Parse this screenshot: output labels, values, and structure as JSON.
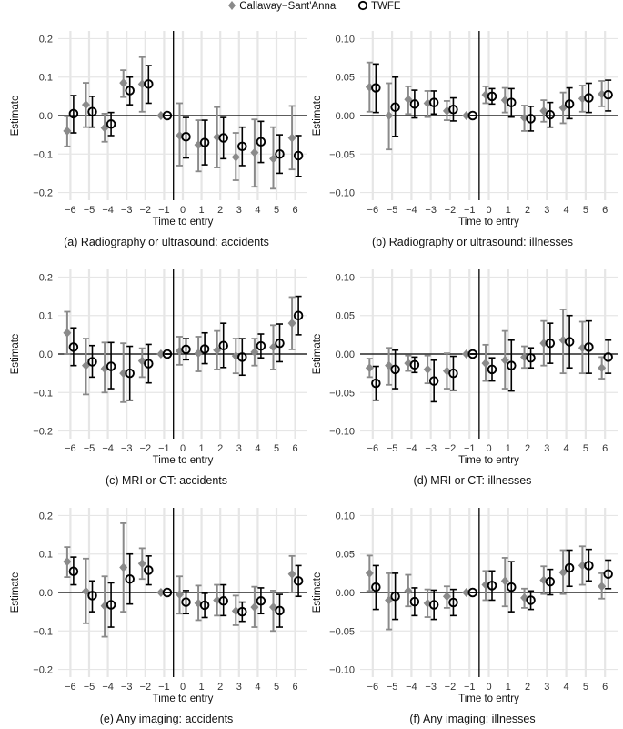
{
  "legend": {
    "callaway": "Callaway−Sant'Anna",
    "twfe": "TWFE"
  },
  "colors": {
    "callaway": "#8a8a8a",
    "twfe": "#000000",
    "grid": "#e6e6e6",
    "zero_line": "#000000"
  },
  "chart_data": [
    {
      "type": "scatter",
      "caption": "(a) Radiography or ultrasound: accidents",
      "xlabel": "Time to entry",
      "ylabel": "Estimate",
      "ylim": [
        -0.22,
        0.22
      ],
      "yticks": [
        -0.2,
        -0.1,
        0.0,
        0.1,
        0.2
      ],
      "ytick_labels": [
        "−0.2",
        "−0.1",
        "0.0",
        "0.1",
        "0.2"
      ],
      "x": [
        -6,
        -5,
        -4,
        -3,
        -2,
        -1,
        0,
        1,
        2,
        3,
        4,
        5,
        6
      ],
      "xtick_labels": [
        "−6",
        "−5",
        "−4",
        "−3",
        "−2",
        "−1",
        "0",
        "1",
        "2",
        "3",
        "4",
        "5",
        "6"
      ],
      "entry_line": -0.5,
      "series": [
        {
          "name": "Callaway−Sant'Anna",
          "estimate": [
            -0.04,
            0.028,
            -0.032,
            0.085,
            0.082,
            0.0,
            -0.052,
            -0.076,
            -0.056,
            -0.108,
            -0.096,
            -0.112,
            -0.058
          ],
          "lower": [
            -0.08,
            -0.03,
            -0.068,
            0.048,
            0.01,
            0.0,
            -0.13,
            -0.145,
            -0.135,
            -0.168,
            -0.185,
            -0.19,
            -0.14
          ],
          "upper": [
            -0.002,
            0.085,
            0.005,
            0.118,
            0.152,
            0.0,
            0.032,
            -0.012,
            0.022,
            -0.045,
            -0.01,
            -0.03,
            0.025
          ]
        },
        {
          "name": "TWFE",
          "estimate": [
            0.005,
            0.01,
            -0.022,
            0.065,
            0.082,
            0.0,
            -0.055,
            -0.07,
            -0.058,
            -0.08,
            -0.068,
            -0.1,
            -0.104
          ],
          "lower": [
            -0.045,
            -0.03,
            -0.052,
            0.028,
            0.032,
            0.0,
            -0.11,
            -0.128,
            -0.112,
            -0.13,
            -0.122,
            -0.15,
            -0.158
          ],
          "upper": [
            0.052,
            0.05,
            0.008,
            0.1,
            0.13,
            0.0,
            -0.005,
            -0.012,
            -0.005,
            -0.03,
            -0.015,
            -0.05,
            -0.052
          ]
        }
      ]
    },
    {
      "type": "scatter",
      "caption": "(b) Radiography or ultrasound: illnesses",
      "xlabel": "Time to entry",
      "ylabel": "Estimate",
      "ylim": [
        -0.11,
        0.11
      ],
      "yticks": [
        -0.1,
        -0.05,
        0.0,
        0.05,
        0.1
      ],
      "ytick_labels": [
        "−0.10",
        "−0.05",
        "0.00",
        "0.05",
        "0.10"
      ],
      "x": [
        -6,
        -5,
        -4,
        -3,
        -2,
        -1,
        0,
        1,
        2,
        3,
        4,
        5,
        6
      ],
      "xtick_labels": [
        "−6",
        "−5",
        "−4",
        "−3",
        "−2",
        "−1",
        "0",
        "1",
        "2",
        "3",
        "4",
        "5",
        "6"
      ],
      "entry_line": -0.5,
      "series": [
        {
          "name": "Callaway−Sant'Anna",
          "estimate": [
            0.037,
            0.0,
            0.021,
            0.016,
            0.006,
            0.0,
            0.027,
            0.02,
            -0.003,
            0.006,
            0.01,
            0.022,
            0.028
          ],
          "lower": [
            0.005,
            -0.044,
            0.002,
            -0.002,
            -0.006,
            0.0,
            0.016,
            0.004,
            -0.02,
            -0.008,
            -0.01,
            0.005,
            0.012
          ],
          "upper": [
            0.069,
            0.042,
            0.038,
            0.032,
            0.019,
            0.0,
            0.038,
            0.036,
            0.013,
            0.02,
            0.03,
            0.039,
            0.045
          ]
        },
        {
          "name": "TWFE",
          "estimate": [
            0.036,
            0.011,
            0.015,
            0.017,
            0.008,
            0.0,
            0.025,
            0.017,
            -0.004,
            0.001,
            0.015,
            0.023,
            0.027
          ],
          "lower": [
            0.004,
            -0.027,
            -0.003,
            0.002,
            -0.007,
            0.0,
            0.015,
            -0.002,
            -0.02,
            -0.015,
            -0.004,
            0.004,
            0.006
          ],
          "upper": [
            0.067,
            0.05,
            0.033,
            0.032,
            0.023,
            0.0,
            0.035,
            0.035,
            0.012,
            0.017,
            0.036,
            0.042,
            0.046
          ]
        }
      ]
    },
    {
      "type": "scatter",
      "caption": "(c) MRI or CT: accidents",
      "xlabel": "Time to entry",
      "ylabel": "Estimate",
      "ylim": [
        -0.22,
        0.22
      ],
      "yticks": [
        -0.2,
        -0.1,
        0.0,
        0.1,
        0.2
      ],
      "ytick_labels": [
        "−0.2",
        "−0.1",
        "0.0",
        "0.1",
        "0.2"
      ],
      "x": [
        -6,
        -5,
        -4,
        -3,
        -2,
        -1,
        0,
        1,
        2,
        3,
        4,
        5,
        6
      ],
      "xtick_labels": [
        "−6",
        "−5",
        "−4",
        "−3",
        "−2",
        "−1",
        "0",
        "1",
        "2",
        "3",
        "4",
        "5",
        "6"
      ],
      "entry_line": -0.5,
      "series": [
        {
          "name": "Callaway−Sant'Anna",
          "estimate": [
            0.055,
            -0.03,
            -0.038,
            -0.05,
            -0.018,
            0.0,
            0.008,
            0.002,
            0.01,
            -0.005,
            0.005,
            0.018,
            0.08
          ],
          "lower": [
            0.0,
            -0.105,
            -0.1,
            -0.125,
            -0.06,
            0.0,
            -0.028,
            -0.045,
            -0.04,
            -0.05,
            -0.03,
            -0.04,
            0.012
          ],
          "upper": [
            0.11,
            0.04,
            0.03,
            0.028,
            0.015,
            0.0,
            0.045,
            0.045,
            0.06,
            0.04,
            0.04,
            0.075,
            0.148
          ]
        },
        {
          "name": "TWFE",
          "estimate": [
            0.018,
            -0.02,
            -0.032,
            -0.05,
            -0.025,
            0.0,
            0.012,
            0.013,
            0.022,
            -0.008,
            0.021,
            0.028,
            0.1
          ],
          "lower": [
            -0.03,
            -0.06,
            -0.09,
            -0.12,
            -0.075,
            0.0,
            -0.015,
            -0.025,
            -0.035,
            -0.055,
            -0.01,
            -0.02,
            0.05
          ],
          "upper": [
            0.068,
            0.022,
            0.03,
            0.02,
            0.025,
            0.0,
            0.04,
            0.055,
            0.08,
            0.04,
            0.052,
            0.078,
            0.15
          ]
        }
      ]
    },
    {
      "type": "scatter",
      "caption": "(d) MRI or CT: illnesses",
      "xlabel": "Time to entry",
      "ylabel": "Estimate",
      "ylim": [
        -0.11,
        0.11
      ],
      "yticks": [
        -0.1,
        -0.05,
        0.0,
        0.05,
        0.1
      ],
      "ytick_labels": [
        "−0.10",
        "−0.05",
        "0.00",
        "0.05",
        "0.10"
      ],
      "x": [
        -6,
        -5,
        -4,
        -3,
        -2,
        -1,
        0,
        1,
        2,
        3,
        4,
        5,
        6
      ],
      "xtick_labels": [
        "−6",
        "−5",
        "−4",
        "−3",
        "−2",
        "−1",
        "0",
        "1",
        "2",
        "3",
        "4",
        "5",
        "6"
      ],
      "entry_line": -0.5,
      "series": [
        {
          "name": "Callaway−Sant'Anna",
          "estimate": [
            -0.018,
            -0.015,
            -0.012,
            -0.02,
            -0.022,
            0.0,
            -0.012,
            -0.008,
            -0.004,
            0.014,
            0.018,
            0.008,
            -0.018
          ],
          "lower": [
            -0.03,
            -0.04,
            -0.022,
            -0.038,
            -0.045,
            0.0,
            -0.035,
            -0.045,
            -0.018,
            -0.015,
            -0.025,
            -0.025,
            -0.032
          ],
          "upper": [
            -0.006,
            0.008,
            -0.002,
            -0.002,
            0.001,
            0.0,
            0.012,
            0.03,
            0.01,
            0.043,
            0.058,
            0.042,
            -0.004
          ]
        },
        {
          "name": "TWFE",
          "estimate": [
            -0.038,
            -0.02,
            -0.014,
            -0.035,
            -0.025,
            0.0,
            -0.02,
            -0.015,
            -0.005,
            0.014,
            0.016,
            0.009,
            -0.004
          ],
          "lower": [
            -0.06,
            -0.045,
            -0.024,
            -0.062,
            -0.047,
            0.0,
            -0.035,
            -0.048,
            -0.018,
            -0.012,
            -0.018,
            -0.025,
            -0.025
          ],
          "upper": [
            -0.016,
            0.005,
            -0.004,
            -0.008,
            -0.003,
            0.0,
            -0.005,
            0.018,
            0.008,
            0.04,
            0.05,
            0.043,
            0.018
          ]
        }
      ]
    },
    {
      "type": "scatter",
      "caption": "(e) Any imaging: accidents",
      "xlabel": "Time to entry",
      "ylabel": "Estimate",
      "ylim": [
        -0.22,
        0.22
      ],
      "yticks": [
        -0.2,
        -0.1,
        0.0,
        0.1,
        0.2
      ],
      "ytick_labels": [
        "−0.2",
        "−0.1",
        "0.0",
        "0.1",
        "0.2"
      ],
      "x": [
        -6,
        -5,
        -4,
        -3,
        -2,
        -1,
        0,
        1,
        2,
        3,
        4,
        5,
        6
      ],
      "xtick_labels": [
        "−6",
        "−5",
        "−4",
        "−3",
        "−2",
        "−1",
        "0",
        "1",
        "2",
        "3",
        "4",
        "5",
        "6"
      ],
      "entry_line": -0.5,
      "series": [
        {
          "name": "Callaway−Sant'Anna",
          "estimate": [
            0.08,
            0.003,
            -0.035,
            0.065,
            0.075,
            0.0,
            -0.005,
            -0.028,
            -0.02,
            -0.048,
            -0.038,
            -0.038,
            0.048
          ],
          "lower": [
            0.04,
            -0.08,
            -0.115,
            -0.05,
            0.035,
            0.0,
            -0.055,
            -0.072,
            -0.06,
            -0.085,
            -0.09,
            -0.1,
            0.0
          ],
          "upper": [
            0.118,
            0.088,
            0.042,
            0.18,
            0.115,
            0.0,
            0.042,
            0.018,
            0.02,
            -0.008,
            0.015,
            0.005,
            0.095
          ]
        },
        {
          "name": "TWFE",
          "estimate": [
            0.055,
            -0.008,
            -0.032,
            0.035,
            0.058,
            0.0,
            -0.025,
            -0.033,
            -0.022,
            -0.05,
            -0.022,
            -0.047,
            0.03
          ],
          "lower": [
            0.02,
            -0.05,
            -0.09,
            -0.03,
            0.02,
            0.0,
            -0.055,
            -0.065,
            -0.06,
            -0.075,
            -0.055,
            -0.09,
            -0.01
          ],
          "upper": [
            0.092,
            0.03,
            0.025,
            0.1,
            0.095,
            0.0,
            0.005,
            -0.002,
            0.02,
            -0.025,
            0.012,
            -0.005,
            0.07
          ]
        }
      ]
    },
    {
      "type": "scatter",
      "caption": "(f) Any imaging: illnesses",
      "xlabel": "Time to entry",
      "ylabel": "Estimate",
      "ylim": [
        -0.11,
        0.11
      ],
      "yticks": [
        -0.1,
        -0.05,
        0.0,
        0.05,
        0.1
      ],
      "ytick_labels": [
        "−0.10",
        "−0.05",
        "0.00",
        "0.05",
        "0.10"
      ],
      "x": [
        -6,
        -5,
        -4,
        -3,
        -2,
        -1,
        0,
        1,
        2,
        3,
        4,
        5,
        6
      ],
      "xtick_labels": [
        "−6",
        "−5",
        "−4",
        "−3",
        "−2",
        "−1",
        "0",
        "1",
        "2",
        "3",
        "4",
        "5",
        "6"
      ],
      "entry_line": -0.5,
      "series": [
        {
          "name": "Callaway−Sant'Anna",
          "estimate": [
            0.025,
            -0.01,
            0.002,
            -0.014,
            -0.005,
            0.0,
            0.01,
            0.015,
            -0.007,
            0.016,
            0.026,
            0.035,
            0.008
          ],
          "lower": [
            0.002,
            -0.048,
            -0.018,
            -0.032,
            -0.02,
            0.0,
            -0.01,
            -0.018,
            -0.02,
            -0.002,
            -0.002,
            0.01,
            -0.008
          ],
          "upper": [
            0.048,
            0.025,
            0.023,
            0.004,
            0.008,
            0.0,
            0.028,
            0.045,
            0.005,
            0.034,
            0.055,
            0.06,
            0.025
          ]
        },
        {
          "name": "TWFE",
          "estimate": [
            0.007,
            -0.005,
            -0.012,
            -0.016,
            -0.013,
            0.0,
            0.009,
            0.007,
            -0.01,
            0.014,
            0.032,
            0.035,
            0.024
          ],
          "lower": [
            -0.022,
            -0.035,
            -0.03,
            -0.035,
            -0.03,
            0.0,
            -0.01,
            -0.025,
            -0.022,
            -0.003,
            0.008,
            0.015,
            0.005
          ],
          "upper": [
            0.035,
            0.025,
            0.006,
            0.003,
            0.004,
            0.0,
            0.028,
            0.04,
            0.002,
            0.03,
            0.055,
            0.056,
            0.042
          ]
        }
      ]
    }
  ]
}
